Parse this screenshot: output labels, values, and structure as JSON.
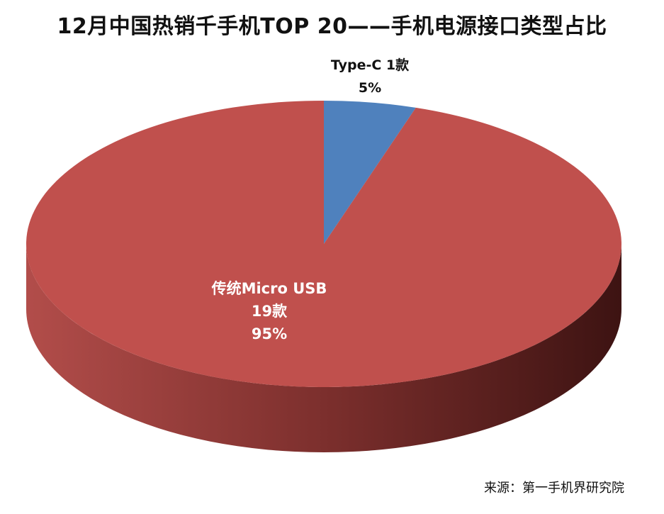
{
  "title": "12月中国热销千手机TOP 20——手机电源接口类型占比",
  "source": "来源：第一手机界研究院",
  "chart_data": {
    "type": "pie",
    "title": "12月中国热销千手机TOP 20——手机电源接口类型占比",
    "categories": [
      "Type-C",
      "传统Micro USB"
    ],
    "values": [
      1,
      19
    ],
    "count_labels": [
      "1款",
      "19款"
    ],
    "percent_labels": [
      "5%",
      "95%"
    ],
    "colors": [
      "#4f81bd",
      "#c0504d"
    ],
    "label_colors": [
      "#111111",
      "#ffffff"
    ],
    "three_d": true
  }
}
